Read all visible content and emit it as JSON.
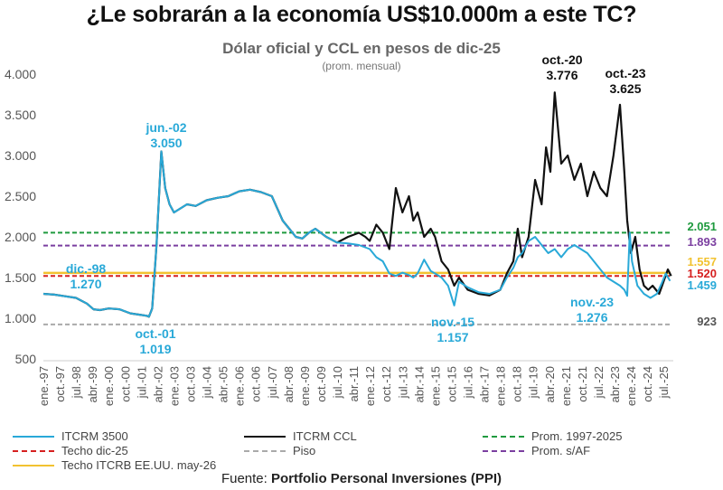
{
  "title": "¿Le sobrarán a la economía US$10.000m a este TC?",
  "subtitle": "Dólar oficial y CCL en pesos de dic-25",
  "subsubtitle": "(prom. mensual)",
  "source_label": "Fuente: ",
  "source_name": "Portfolio Personal Inversiones (PPI)",
  "colors": {
    "itcrm3500": "#29a9d8",
    "itcrm_ccl": "#111111",
    "prom_1997_2025": "#1f9a3f",
    "prom_saf": "#7b3fa0",
    "techo_dic25": "#d62020",
    "piso": "#aaaaaa",
    "techo_itcrb": "#f2c230"
  },
  "chart_data": {
    "type": "line",
    "title": "Dólar oficial y CCL en pesos de dic-25",
    "ylim": [
      500,
      4000
    ],
    "yticks": [
      500,
      1000,
      1500,
      2000,
      2500,
      3000,
      3500,
      4000
    ],
    "ytick_labels": [
      "500",
      "1.000",
      "1.500",
      "2.000",
      "2.500",
      "3.000",
      "3.500",
      "4.000"
    ],
    "xlim": [
      1997.0,
      2025.95
    ],
    "xtick_labels": [
      "ene.-97",
      "oct.-97",
      "jul.-98",
      "abr.-99",
      "ene.-00",
      "oct.-00",
      "jul.-01",
      "abr.-02",
      "ene.-03",
      "oct.-03",
      "jul.-04",
      "abr.-05",
      "ene.-06",
      "oct.-06",
      "jul.-07",
      "abr.-08",
      "ene.-09",
      "oct.-09",
      "jul.-10",
      "abr.-11",
      "ene.-12",
      "oct.-12",
      "jul.-13",
      "abr.-14",
      "ene.-15",
      "oct.-15",
      "jul.-16",
      "abr.-17",
      "ene.-18",
      "oct.-18",
      "jul.-19",
      "abr.-20",
      "ene.-21",
      "oct.-21",
      "jul.-22",
      "abr.-23",
      "ene.-24",
      "oct.-24",
      "jul.-25"
    ],
    "series": [
      {
        "name": "ITCRM 3500",
        "color": "#29a9d8",
        "x": [
          1997.0,
          1997.5,
          1998.0,
          1998.5,
          1999.0,
          1999.3,
          1999.6,
          2000.0,
          2000.5,
          2001.0,
          2001.5,
          2001.75,
          2001.85,
          2002.0,
          2002.2,
          2002.42,
          2002.6,
          2002.8,
          2003.0,
          2003.3,
          2003.6,
          2004.0,
          2004.5,
          2005.0,
          2005.5,
          2006.0,
          2006.5,
          2007.0,
          2007.5,
          2008.0,
          2008.3,
          2008.6,
          2008.9,
          2009.2,
          2009.5,
          2010.0,
          2010.5,
          2011.0,
          2011.5,
          2012.0,
          2012.3,
          2012.6,
          2012.9,
          2013.2,
          2013.5,
          2013.8,
          2014.0,
          2014.2,
          2014.5,
          2014.8,
          2015.0,
          2015.3,
          2015.6,
          2015.88,
          2016.1,
          2016.5,
          2017.0,
          2017.5,
          2018.0,
          2018.3,
          2018.6,
          2018.8,
          2019.0,
          2019.3,
          2019.6,
          2019.9,
          2020.2,
          2020.5,
          2020.8,
          2021.1,
          2021.4,
          2021.7,
          2022.0,
          2022.3,
          2022.6,
          2022.9,
          2023.2,
          2023.5,
          2023.7,
          2023.83,
          2023.95,
          2024.05,
          2024.3,
          2024.6,
          2024.9,
          2025.2,
          2025.4,
          2025.6,
          2025.8
        ],
        "values": [
          1300,
          1290,
          1270,
          1250,
          1180,
          1110,
          1100,
          1120,
          1110,
          1060,
          1040,
          1030,
          1019,
          1120,
          1900,
          3050,
          2600,
          2400,
          2300,
          2350,
          2400,
          2380,
          2450,
          2480,
          2500,
          2560,
          2580,
          2550,
          2500,
          2200,
          2100,
          2000,
          1980,
          2050,
          2100,
          2000,
          1930,
          1920,
          1900,
          1850,
          1750,
          1700,
          1550,
          1520,
          1560,
          1530,
          1500,
          1550,
          1720,
          1580,
          1550,
          1500,
          1400,
          1157,
          1450,
          1380,
          1320,
          1300,
          1350,
          1500,
          1620,
          1750,
          1800,
          1950,
          2000,
          1900,
          1800,
          1850,
          1750,
          1850,
          1900,
          1850,
          1800,
          1700,
          1600,
          1500,
          1450,
          1400,
          1350,
          1276,
          2051,
          1700,
          1400,
          1300,
          1250,
          1300,
          1420,
          1550,
          1459
        ]
      },
      {
        "name": "ITCRM CCL",
        "color": "#111111",
        "x": [
          1997.0,
          1997.5,
          1998.0,
          1998.5,
          1999.0,
          1999.3,
          1999.6,
          2000.0,
          2000.5,
          2001.0,
          2001.5,
          2001.75,
          2001.85,
          2002.0,
          2002.2,
          2002.42,
          2002.6,
          2002.8,
          2003.0,
          2003.3,
          2003.6,
          2004.0,
          2004.5,
          2005.0,
          2005.5,
          2006.0,
          2006.5,
          2007.0,
          2007.5,
          2008.0,
          2008.3,
          2008.6,
          2008.9,
          2009.2,
          2009.5,
          2010.0,
          2010.5,
          2011.0,
          2011.5,
          2011.8,
          2012.0,
          2012.3,
          2012.6,
          2012.9,
          2013.2,
          2013.5,
          2013.8,
          2014.0,
          2014.2,
          2014.5,
          2014.8,
          2015.0,
          2015.3,
          2015.6,
          2015.88,
          2016.1,
          2016.5,
          2017.0,
          2017.5,
          2018.0,
          2018.3,
          2018.6,
          2018.8,
          2019.0,
          2019.3,
          2019.6,
          2019.9,
          2020.1,
          2020.3,
          2020.5,
          2020.8,
          2021.1,
          2021.4,
          2021.7,
          2022.0,
          2022.3,
          2022.6,
          2022.9,
          2023.2,
          2023.5,
          2023.7,
          2023.83,
          2024.0,
          2024.2,
          2024.4,
          2024.6,
          2024.8,
          2025.0,
          2025.3,
          2025.5,
          2025.7,
          2025.85
        ],
        "values": [
          1300,
          1290,
          1270,
          1250,
          1180,
          1110,
          1100,
          1120,
          1110,
          1060,
          1040,
          1030,
          1019,
          1120,
          1900,
          3050,
          2600,
          2400,
          2300,
          2350,
          2400,
          2380,
          2450,
          2480,
          2500,
          2560,
          2580,
          2550,
          2500,
          2200,
          2100,
          2000,
          1980,
          2050,
          2100,
          2000,
          1930,
          2000,
          2050,
          2000,
          1950,
          2150,
          2050,
          1850,
          2600,
          2300,
          2500,
          2200,
          2300,
          2000,
          2100,
          2000,
          1700,
          1600,
          1400,
          1500,
          1350,
          1300,
          1280,
          1350,
          1550,
          1700,
          2100,
          1750,
          2000,
          2700,
          2400,
          3100,
          2800,
          3776,
          2900,
          3000,
          2700,
          2900,
          2500,
          2800,
          2600,
          2500,
          3000,
          3625,
          2800,
          2200,
          1800,
          2000,
          1600,
          1400,
          1350,
          1400,
          1300,
          1450,
          1600,
          1520
        ]
      }
    ],
    "reference_lines": [
      {
        "name": "Prom. 1997-2025",
        "value": 2051,
        "label": "2.051",
        "color": "#1f9a3f",
        "style": "dashed"
      },
      {
        "name": "Prom. s/AF",
        "value": 1893,
        "label": "1.893",
        "color": "#7b3fa0",
        "style": "dashed"
      },
      {
        "name": "Techo ITCRB EE.UU. may-26",
        "value": 1557,
        "label": "1.557",
        "color": "#f2c230",
        "style": "solid"
      },
      {
        "name": "Techo dic-25",
        "value": 1520,
        "label": "1.520",
        "color": "#d62020",
        "style": "dashed"
      },
      {
        "name": "Piso",
        "value": 923,
        "label": "923",
        "color": "#aaaaaa",
        "style": "dashed"
      }
    ],
    "annotations": [
      {
        "text": "dic.-98",
        "value_text": "1.270",
        "x": 1998.9,
        "y": 1270,
        "color": "#29a9d8"
      },
      {
        "text": "jun.-02",
        "value_text": "3.050",
        "x": 2002.42,
        "y": 3050,
        "color": "#29a9d8"
      },
      {
        "text": "oct.-01",
        "value_text": "1.019",
        "x": 2001.75,
        "y": 1019,
        "color": "#29a9d8"
      },
      {
        "text": "nov.-15",
        "value_text": "1.157",
        "x": 2015.88,
        "y": 1157,
        "color": "#29a9d8"
      },
      {
        "text": "nov.-23",
        "value_text": "1.276",
        "x": 2023.83,
        "y": 1276,
        "color": "#29a9d8"
      },
      {
        "text": "oct.-20",
        "value_text": "3.776",
        "x": 2020.75,
        "y": 3776,
        "color": "#111111"
      },
      {
        "text": "oct.-23",
        "value_text": "3.625",
        "x": 2023.75,
        "y": 3625,
        "color": "#111111"
      }
    ],
    "end_value_labels": [
      {
        "label": "1.459",
        "value": 1459,
        "color": "#29a9d8"
      }
    ],
    "legend": [
      {
        "name": "ITCRM 3500",
        "color": "#29a9d8",
        "style": "solid"
      },
      {
        "name": "ITCRM CCL",
        "color": "#111111",
        "style": "solid"
      },
      {
        "name": "Prom. 1997-2025",
        "color": "#1f9a3f",
        "style": "dashed"
      },
      {
        "name": "Techo dic-25",
        "color": "#d62020",
        "style": "dashed"
      },
      {
        "name": "Piso",
        "color": "#aaaaaa",
        "style": "dashed"
      },
      {
        "name": "Prom. s/AF",
        "color": "#7b3fa0",
        "style": "dashed"
      },
      {
        "name": "Techo ITCRB EE.UU. may-26",
        "color": "#f2c230",
        "style": "solid"
      }
    ],
    "legend_position": "bottom"
  }
}
